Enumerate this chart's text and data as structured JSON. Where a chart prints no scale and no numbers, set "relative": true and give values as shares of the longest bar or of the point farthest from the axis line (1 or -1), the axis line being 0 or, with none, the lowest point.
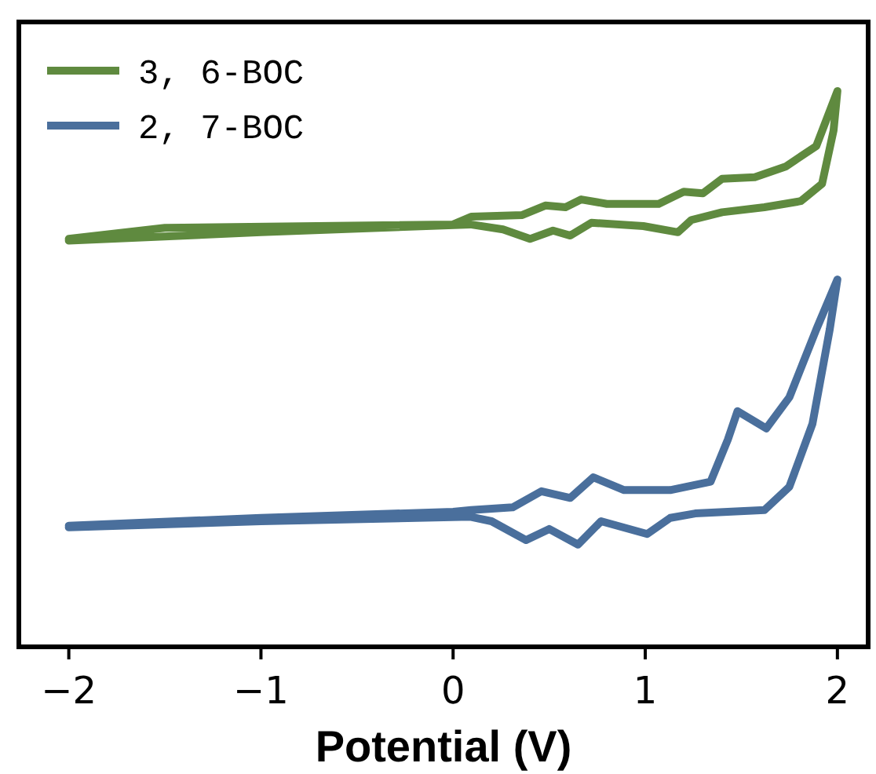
{
  "chart_data": {
    "type": "line",
    "xlabel": "Potential (V)",
    "relative": true,
    "xlim": [
      -2.26,
      2.16
    ],
    "xticks": [
      -2,
      -1,
      0,
      1,
      2
    ],
    "legend": "top left",
    "grid": false,
    "marker": "none",
    "line_style": "solid",
    "series": [
      {
        "name": "3, 6-BOC",
        "color": "#5f8a3f",
        "x": [
          -2,
          -1.5,
          0,
          0.094,
          0.36,
          0.48,
          0.585,
          0.667,
          0.8,
          1.07,
          1.2,
          1.3,
          1.4,
          1.57,
          1.73,
          1.89,
          2,
          1.98,
          1.92,
          1.81,
          1.62,
          1.4,
          1.24,
          1.17,
          0.99,
          0.72,
          0.61,
          0.52,
          0.4,
          0.26,
          0.09,
          -1,
          -2
        ],
        "values": [
          0.734,
          0.754,
          0.76,
          0.774,
          0.777,
          0.794,
          0.791,
          0.805,
          0.797,
          0.797,
          0.819,
          0.816,
          0.842,
          0.845,
          0.864,
          0.901,
          1,
          0.929,
          0.833,
          0.802,
          0.791,
          0.782,
          0.768,
          0.746,
          0.757,
          0.763,
          0.74,
          0.749,
          0.734,
          0.751,
          0.76,
          0.746,
          0.731
        ]
      },
      {
        "name": "2, 7-BOC",
        "color": "#4a6f9c",
        "x": [
          -2,
          -1,
          0,
          0.094,
          0.31,
          0.46,
          0.61,
          0.73,
          0.89,
          1.13,
          1.34,
          1.43,
          1.48,
          1.63,
          1.75,
          1.89,
          2,
          1.96,
          1.87,
          1.75,
          1.62,
          1.26,
          1.13,
          1.01,
          0.77,
          0.65,
          0.5,
          0.38,
          0.2,
          0.09,
          -1,
          -2
        ],
        "values": [
          0.218,
          0.232,
          0.243,
          0.246,
          0.251,
          0.28,
          0.268,
          0.305,
          0.282,
          0.282,
          0.297,
          0.373,
          0.424,
          0.393,
          0.449,
          0.571,
          0.661,
          0.571,
          0.401,
          0.288,
          0.246,
          0.24,
          0.232,
          0.203,
          0.226,
          0.184,
          0.212,
          0.192,
          0.226,
          0.234,
          0.226,
          0.215
        ]
      }
    ]
  }
}
